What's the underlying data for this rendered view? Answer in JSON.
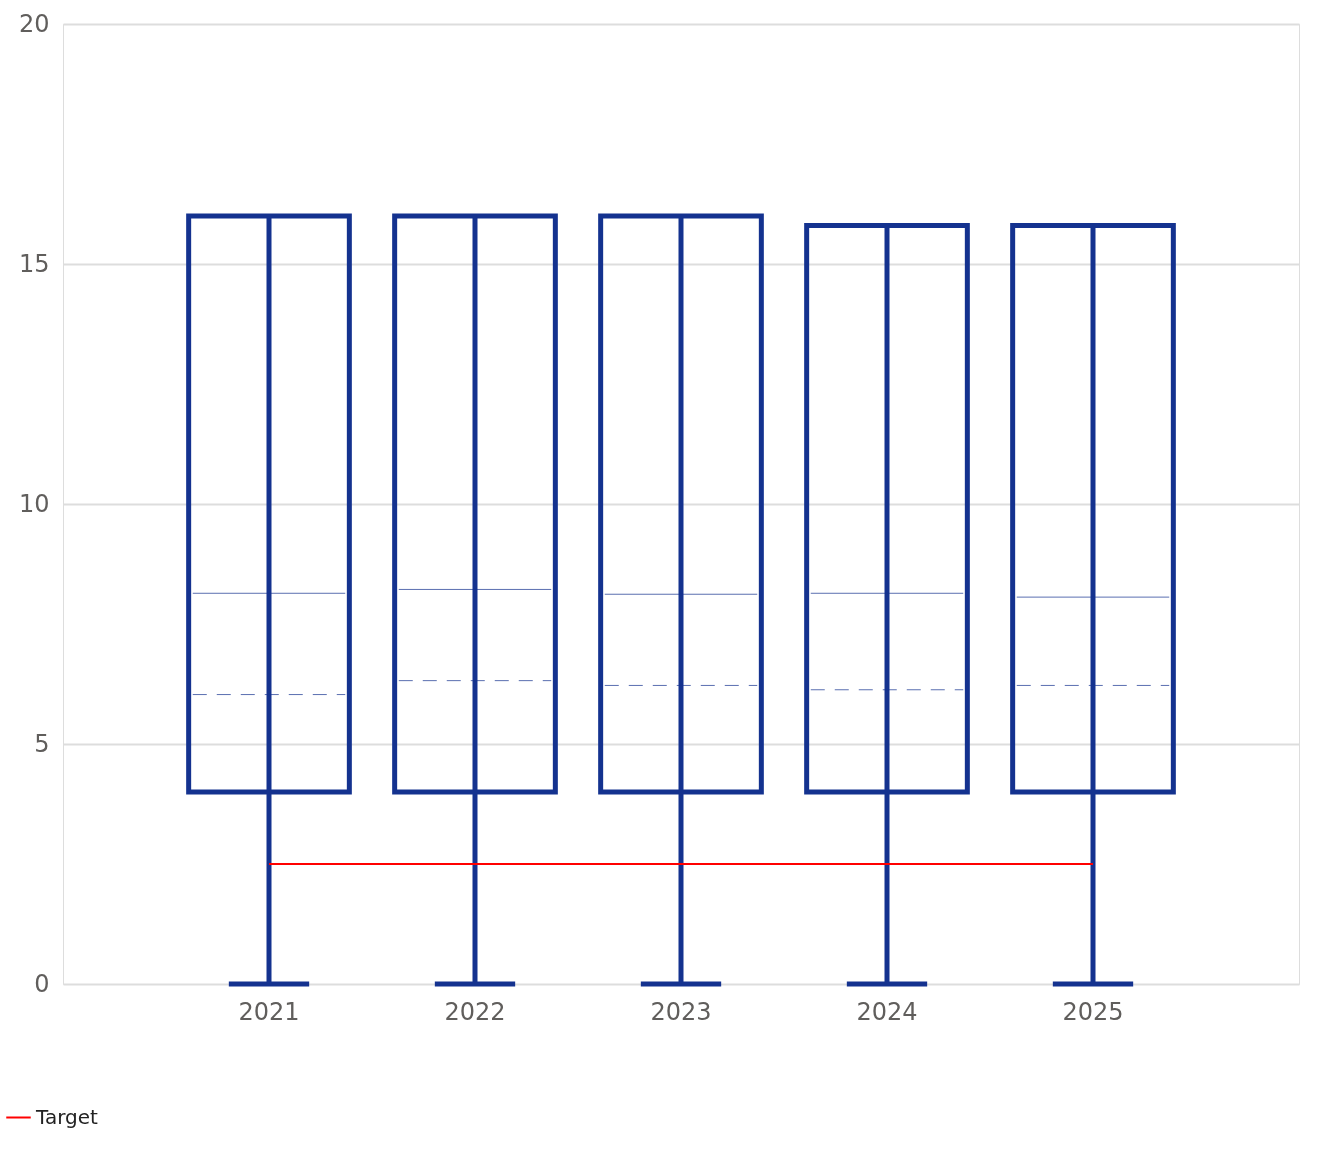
{
  "chart_data": {
    "type": "box",
    "categories": [
      "2021",
      "2022",
      "2023",
      "2024",
      "2025"
    ],
    "color": "#14328f",
    "boxes": [
      {
        "low": 0,
        "q1": 4,
        "median": 8.14,
        "q3": 16,
        "high": 16,
        "mean": 6.03
      },
      {
        "low": 0,
        "q1": 4,
        "median": 8.22,
        "q3": 16,
        "high": 16,
        "mean": 6.32
      },
      {
        "low": 0,
        "q1": 4,
        "median": 8.12,
        "q3": 16,
        "high": 16,
        "mean": 6.22
      },
      {
        "low": 0,
        "q1": 4,
        "median": 8.14,
        "q3": 15.8,
        "high": 15.8,
        "mean": 6.13
      },
      {
        "low": 0,
        "q1": 4,
        "median": 8.06,
        "q3": 15.8,
        "high": 15.8,
        "mean": 6.22
      }
    ],
    "series": [
      {
        "name": "Target",
        "type": "line",
        "color": "#ff0000",
        "values": [
          2.5,
          2.5,
          2.5,
          2.5,
          2.5
        ]
      }
    ],
    "ylim": [
      0,
      20
    ],
    "yticks": [
      0,
      5,
      10,
      15,
      20
    ],
    "grid": "y",
    "legend": "bottom left"
  }
}
